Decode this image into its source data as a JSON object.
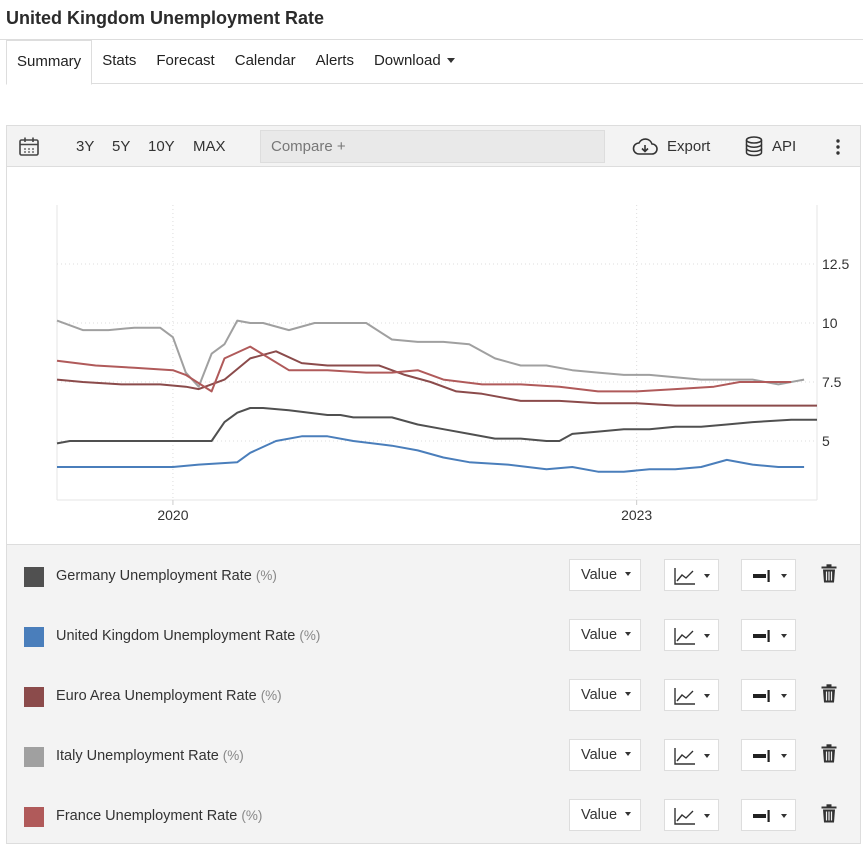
{
  "page": {
    "title": "United Kingdom Unemployment Rate"
  },
  "tabs": [
    {
      "label": "Summary",
      "active": true
    },
    {
      "label": "Stats"
    },
    {
      "label": "Forecast"
    },
    {
      "label": "Calendar"
    },
    {
      "label": "Alerts"
    },
    {
      "label": "Download",
      "dropdown": true
    }
  ],
  "toolbar": {
    "calendar_icon": "calendar-icon",
    "ranges": [
      "3Y",
      "5Y",
      "10Y",
      "MAX"
    ],
    "compare_placeholder": "Compare +",
    "export_label": "Export",
    "export_icon": "cloud-download-icon",
    "api_label": "API",
    "api_icon": "database-icon",
    "more_icon": "more-vertical-icon"
  },
  "chart_data": {
    "type": "line",
    "x_ticks": [
      "2020",
      "2023"
    ],
    "y_ticks": [
      "5",
      "7.5",
      "10",
      "12.5"
    ],
    "ylim": [
      2.5,
      15.0
    ],
    "xlim": [
      "2019-04",
      "2024-03"
    ],
    "grid": true,
    "series": [
      {
        "name": "Germany Unemployment Rate",
        "color": "#505050",
        "x": [
          "2019-04",
          "2019-05",
          "2019-08",
          "2019-10",
          "2020-01",
          "2020-02",
          "2020-03",
          "2020-04",
          "2020-05",
          "2020-06",
          "2020-07",
          "2020-08",
          "2020-10",
          "2021-01",
          "2021-02",
          "2021-03",
          "2021-05",
          "2021-06",
          "2021-08",
          "2021-10",
          "2021-12",
          "2022-02",
          "2022-04",
          "2022-06",
          "2022-07",
          "2022-08",
          "2022-10",
          "2022-12",
          "2023-02",
          "2023-04",
          "2023-06",
          "2023-08",
          "2023-10",
          "2024-01",
          "2024-03"
        ],
        "values": [
          4.9,
          5.0,
          5.0,
          5.0,
          5.0,
          5.0,
          5.0,
          5.0,
          5.8,
          6.2,
          6.4,
          6.4,
          6.3,
          6.1,
          6.1,
          6.0,
          6.0,
          6.0,
          5.7,
          5.5,
          5.3,
          5.1,
          5.1,
          5.0,
          5.0,
          5.3,
          5.4,
          5.5,
          5.5,
          5.6,
          5.6,
          5.7,
          5.8,
          5.9,
          5.9
        ]
      },
      {
        "name": "United Kingdom Unemployment Rate",
        "color": "#4a7ebb",
        "x": [
          "2019-04",
          "2019-07",
          "2019-10",
          "2020-01",
          "2020-03",
          "2020-06",
          "2020-07",
          "2020-09",
          "2020-11",
          "2021-01",
          "2021-03",
          "2021-06",
          "2021-08",
          "2021-10",
          "2021-12",
          "2022-03",
          "2022-06",
          "2022-08",
          "2022-10",
          "2022-12",
          "2023-02",
          "2023-04",
          "2023-06",
          "2023-08",
          "2023-10",
          "2023-12",
          "2024-02"
        ],
        "values": [
          3.9,
          3.9,
          3.9,
          3.9,
          4.0,
          4.1,
          4.5,
          5.0,
          5.2,
          5.2,
          5.0,
          4.8,
          4.6,
          4.3,
          4.1,
          4.0,
          3.8,
          3.9,
          3.7,
          3.7,
          3.8,
          3.8,
          3.9,
          4.2,
          4.0,
          3.9,
          3.9
        ]
      },
      {
        "name": "Euro Area Unemployment Rate",
        "color": "#8b4b4b",
        "x": [
          "2019-04",
          "2019-06",
          "2019-09",
          "2019-12",
          "2020-02",
          "2020-03",
          "2020-05",
          "2020-07",
          "2020-09",
          "2020-11",
          "2021-01",
          "2021-03",
          "2021-05",
          "2021-07",
          "2021-09",
          "2021-11",
          "2022-01",
          "2022-04",
          "2022-07",
          "2022-10",
          "2023-01",
          "2023-04",
          "2023-07",
          "2023-10",
          "2024-01",
          "2024-03"
        ],
        "values": [
          7.6,
          7.5,
          7.4,
          7.4,
          7.3,
          7.2,
          7.6,
          8.5,
          8.8,
          8.3,
          8.2,
          8.2,
          8.2,
          7.8,
          7.5,
          7.1,
          7.0,
          6.7,
          6.7,
          6.6,
          6.6,
          6.5,
          6.5,
          6.5,
          6.5,
          6.5
        ]
      },
      {
        "name": "Italy Unemployment Rate",
        "color": "#a0a0a0",
        "x": [
          "2019-04",
          "2019-06",
          "2019-08",
          "2019-10",
          "2019-12",
          "2020-01",
          "2020-02",
          "2020-03",
          "2020-04",
          "2020-05",
          "2020-06",
          "2020-07",
          "2020-08",
          "2020-10",
          "2020-12",
          "2021-02",
          "2021-04",
          "2021-06",
          "2021-08",
          "2021-10",
          "2021-12",
          "2022-02",
          "2022-04",
          "2022-06",
          "2022-08",
          "2022-10",
          "2022-12",
          "2023-02",
          "2023-04",
          "2023-06",
          "2023-08",
          "2023-10",
          "2023-12",
          "2024-02"
        ],
        "values": [
          10.1,
          9.7,
          9.7,
          9.8,
          9.8,
          9.4,
          7.9,
          7.3,
          8.7,
          9.1,
          10.1,
          10.0,
          10.0,
          9.7,
          10.0,
          10.0,
          10.0,
          9.3,
          9.2,
          9.2,
          9.1,
          8.5,
          8.2,
          8.2,
          8.0,
          7.9,
          7.8,
          7.8,
          7.7,
          7.6,
          7.6,
          7.6,
          7.4,
          7.6
        ]
      },
      {
        "name": "France Unemployment Rate",
        "color": "#b05a5a",
        "x": [
          "2019-04",
          "2019-07",
          "2019-10",
          "2020-01",
          "2020-02",
          "2020-04",
          "2020-05",
          "2020-07",
          "2020-10",
          "2021-01",
          "2021-04",
          "2021-06",
          "2021-08",
          "2021-10",
          "2022-01",
          "2022-04",
          "2022-07",
          "2022-10",
          "2023-01",
          "2023-04",
          "2023-07",
          "2023-09",
          "2023-11",
          "2024-01"
        ],
        "values": [
          8.4,
          8.2,
          8.1,
          8.0,
          7.8,
          7.1,
          8.5,
          9.0,
          8.0,
          8.0,
          7.9,
          7.9,
          8.0,
          7.6,
          7.4,
          7.4,
          7.3,
          7.1,
          7.1,
          7.2,
          7.3,
          7.5,
          7.5,
          7.5
        ]
      }
    ]
  },
  "series_panel": [
    {
      "name": "Germany Unemployment Rate",
      "unit": "(%)",
      "color": "#505050",
      "value_label": "Value",
      "deletable": true
    },
    {
      "name": "United Kingdom Unemployment Rate",
      "unit": "(%)",
      "color": "#4a7ebb",
      "value_label": "Value",
      "deletable": false
    },
    {
      "name": "Euro Area Unemployment Rate",
      "unit": "(%)",
      "color": "#8b4b4b",
      "value_label": "Value",
      "deletable": true
    },
    {
      "name": "Italy Unemployment Rate",
      "unit": "(%)",
      "color": "#a0a0a0",
      "value_label": "Value",
      "deletable": true
    },
    {
      "name": "France Unemployment Rate",
      "unit": "(%)",
      "color": "#b05a5a",
      "value_label": "Value",
      "deletable": true
    }
  ]
}
